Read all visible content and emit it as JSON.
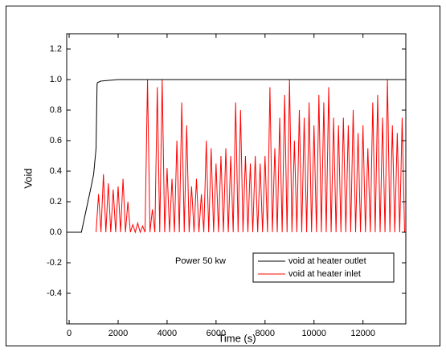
{
  "chart_data": {
    "type": "line",
    "xlabel": "Time (s)",
    "ylabel": "Void",
    "annotation": "Power 50 kw",
    "annotation_color": "#0000ff",
    "xlim": [
      -100,
      13750
    ],
    "ylim": [
      -0.6,
      1.3
    ],
    "xticks": [
      0,
      2000,
      4000,
      6000,
      8000,
      10000,
      12000
    ],
    "yticks": [
      -0.4,
      -0.2,
      {
        "value": 0,
        "label": "0.0"
      },
      0.2,
      0.4,
      0.6,
      0.8,
      {
        "value": 1,
        "label": "1.0"
      },
      1.2
    ],
    "legend": "bottom-right",
    "series": [
      {
        "name": "void at heater outlet",
        "color": "#000000",
        "x": [
          0,
          500,
          700,
          900,
          1000,
          1100,
          1140,
          1160,
          1300,
          2000,
          13700
        ],
        "values": [
          0,
          0,
          0.15,
          0.3,
          0.38,
          0.55,
          0.97,
          0.98,
          0.99,
          1.0,
          1.0
        ]
      },
      {
        "name": "void at heater inlet",
        "color": "#ff0000",
        "x": [
          1100,
          1200,
          1300,
          1400,
          1500,
          1600,
          1700,
          1800,
          1900,
          2000,
          2100,
          2200,
          2300,
          2400,
          2500,
          2600,
          2700,
          2800,
          2900,
          3000,
          3100,
          3200,
          3300,
          3400,
          3500,
          3600,
          3700,
          3800,
          3900,
          4000,
          4100,
          4200,
          4300,
          4400,
          4500,
          4600,
          4700,
          4800,
          4900,
          5000,
          5100,
          5200,
          5300,
          5400,
          5500,
          5600,
          5700,
          5800,
          5900,
          6000,
          6100,
          6200,
          6300,
          6400,
          6500,
          6600,
          6700,
          6800,
          6900,
          7000,
          7100,
          7200,
          7300,
          7400,
          7500,
          7600,
          7700,
          7800,
          7900,
          8000,
          8100,
          8200,
          8300,
          8400,
          8500,
          8600,
          8700,
          8800,
          8900,
          9000,
          9100,
          9200,
          9300,
          9400,
          9500,
          9600,
          9700,
          9800,
          9900,
          10000,
          10100,
          10200,
          10300,
          10400,
          10500,
          10600,
          10700,
          10800,
          10900,
          11000,
          11100,
          11200,
          11300,
          11400,
          11500,
          11600,
          11700,
          11800,
          11900,
          12000,
          12100,
          12200,
          12300,
          12400,
          12500,
          12600,
          12700,
          12800,
          12900,
          13000,
          13100,
          13200,
          13300,
          13400,
          13500,
          13600,
          13700
        ],
        "values": [
          0,
          0.25,
          0,
          0.38,
          0,
          0.32,
          0,
          0.28,
          0,
          0.3,
          0,
          0.35,
          0,
          0.2,
          0,
          0.05,
          0,
          0.06,
          0,
          0.04,
          0,
          1.0,
          0,
          0.15,
          0,
          0.95,
          0,
          1.0,
          0,
          0.42,
          0,
          0.35,
          0,
          0.6,
          0,
          0.85,
          0,
          0.7,
          0,
          0.3,
          0,
          0.35,
          0,
          0.25,
          0,
          0.6,
          0,
          0.55,
          0,
          0.45,
          0,
          0.5,
          0,
          0.55,
          0,
          0.5,
          0,
          0.85,
          0,
          0.8,
          0,
          0.5,
          0,
          0.45,
          0,
          0.5,
          0,
          0.45,
          0,
          0.5,
          0,
          0.95,
          0,
          0.55,
          0,
          0.75,
          0,
          0.9,
          0,
          1.0,
          0,
          0.6,
          0,
          0.8,
          0,
          0.75,
          0,
          0.85,
          0,
          0.7,
          0,
          0.9,
          0,
          0.85,
          0,
          0.95,
          0,
          0.75,
          0,
          0.7,
          0,
          0.75,
          0,
          0.7,
          0,
          0.8,
          0,
          0.65,
          0,
          0.7,
          0,
          0.55,
          0,
          0.85,
          0,
          0.9,
          0,
          0.75,
          0,
          1.0,
          0,
          0.7,
          0,
          0.65,
          0,
          0.75,
          0
        ]
      }
    ]
  }
}
